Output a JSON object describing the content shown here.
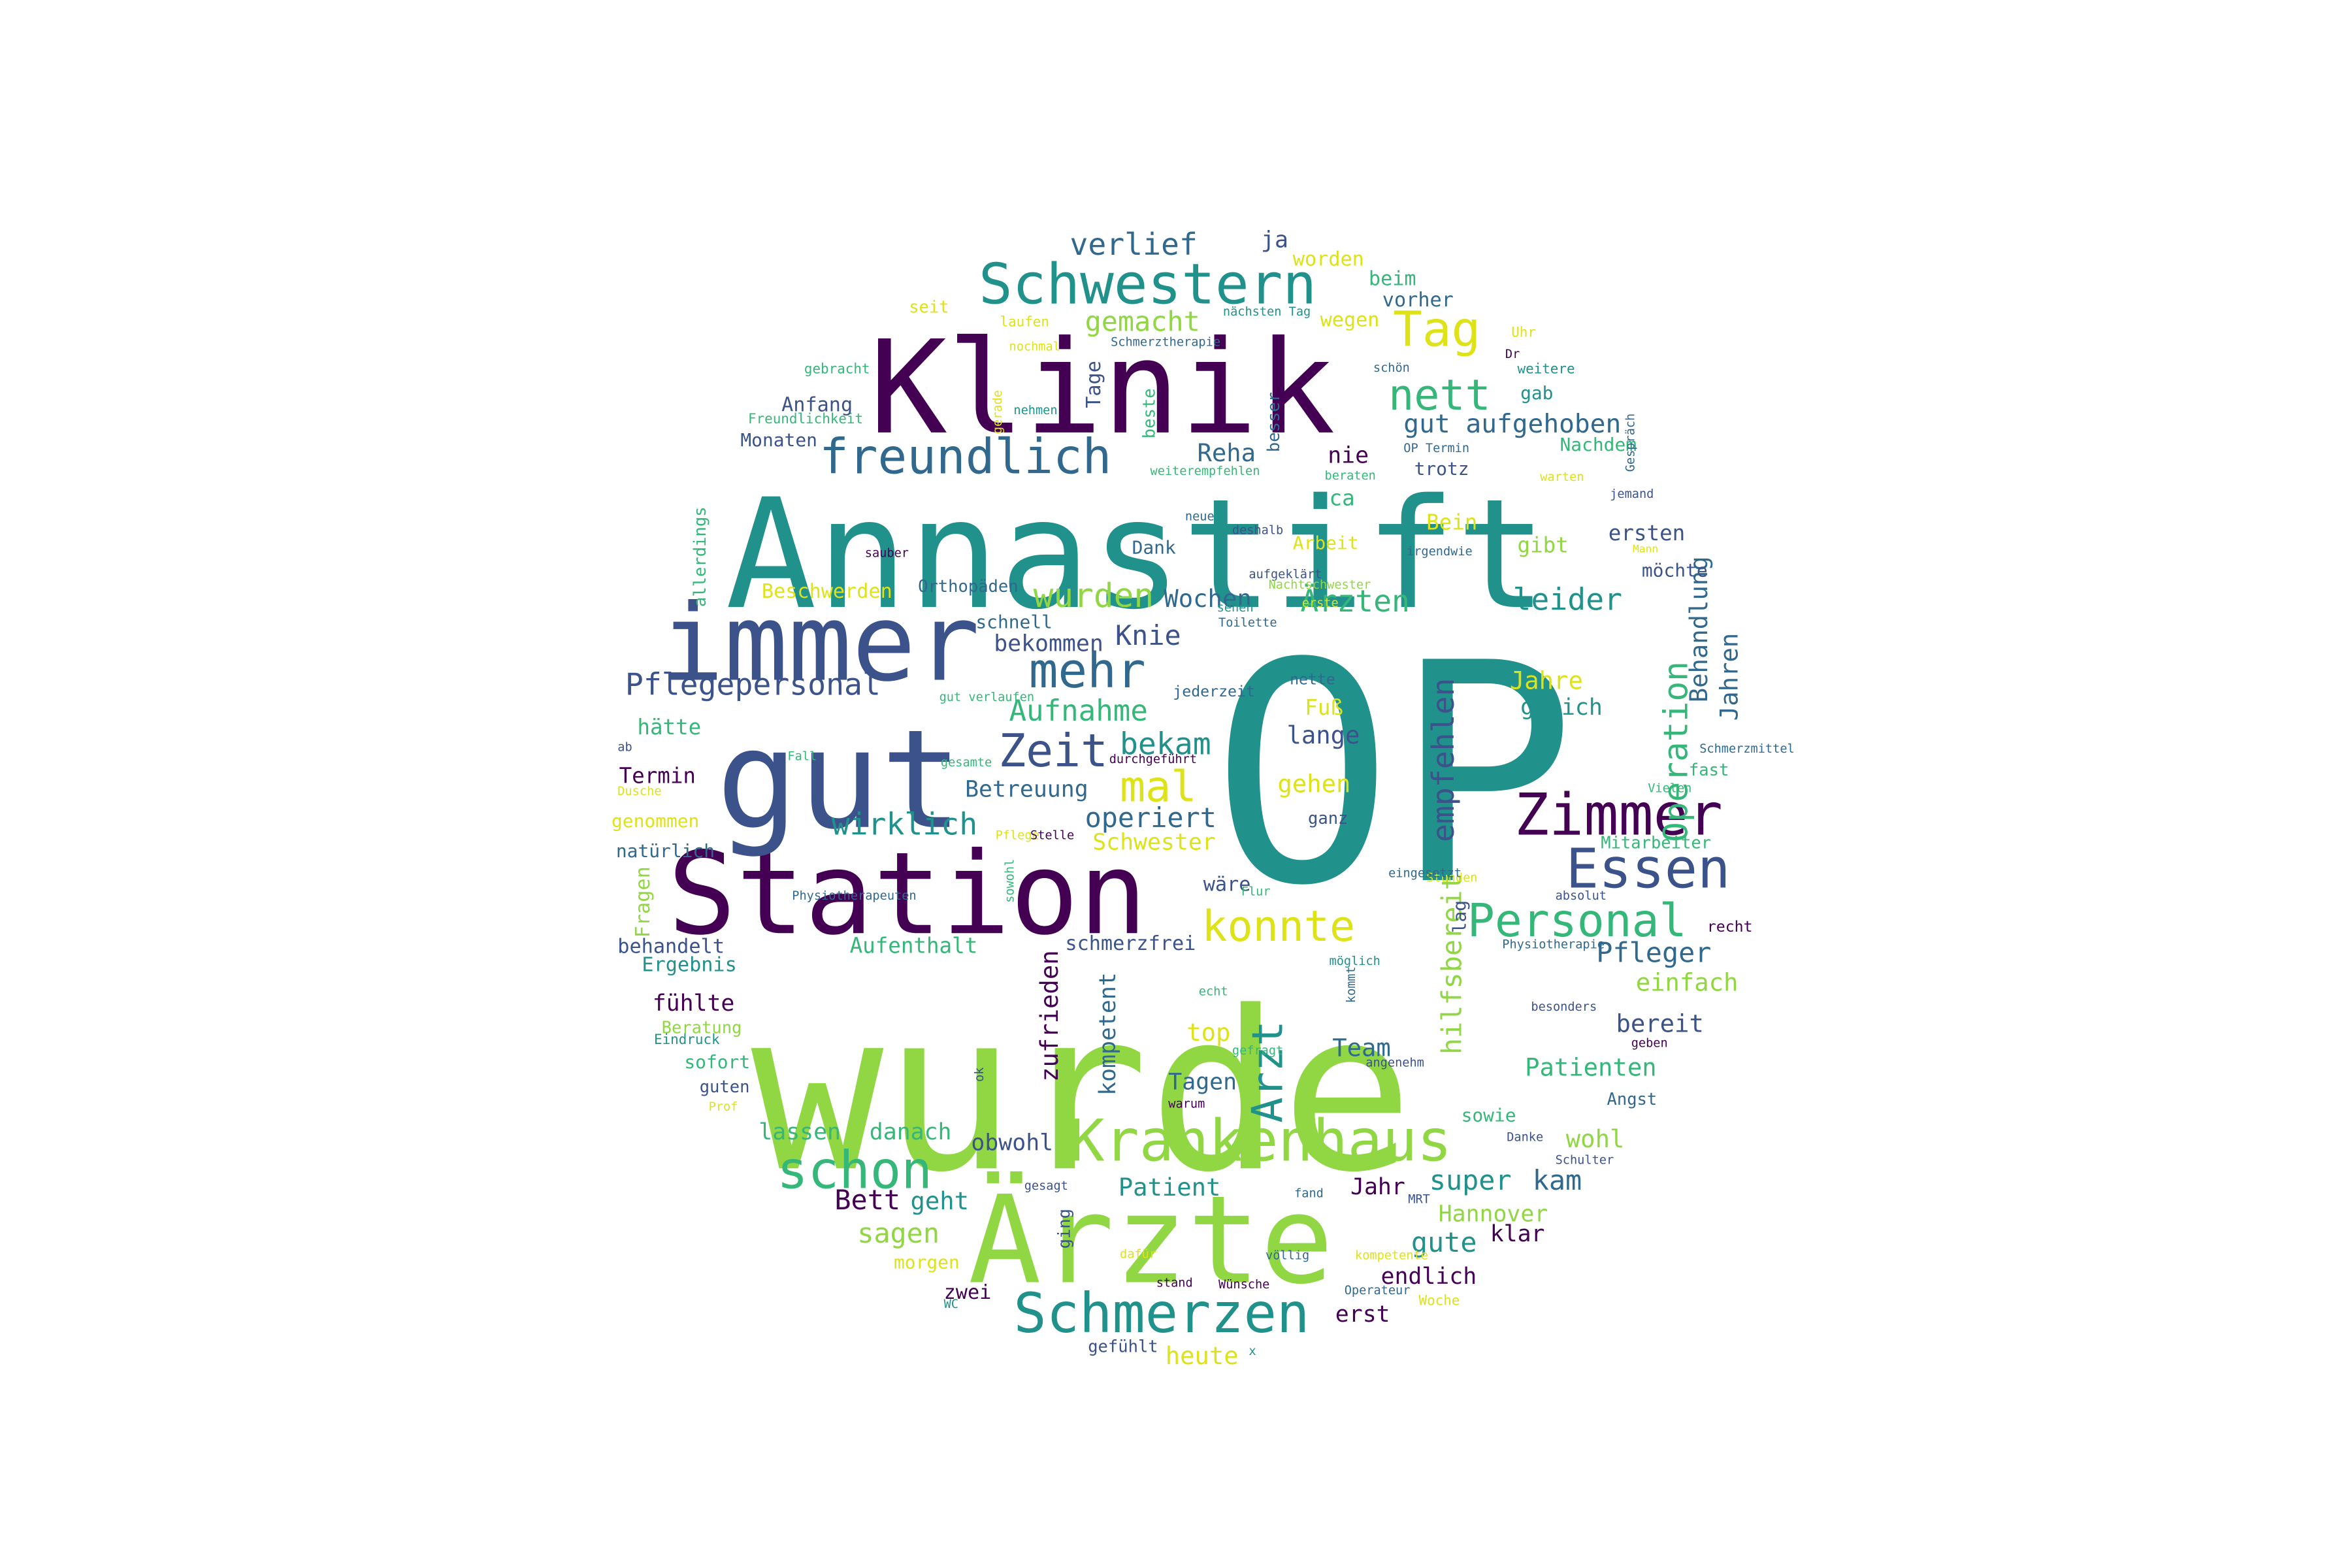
{
  "palette": {
    "dark_purple": "#440154",
    "indigo": "#3b528b",
    "blue": "#31688e",
    "teal": "#21918c",
    "green_teal": "#35b779",
    "lime": "#90d743",
    "yellow": "#dde318"
  },
  "words": [
    {
      "text": "OP",
      "color": "#21918c"
    },
    {
      "text": "wurde",
      "color": "#90d743"
    },
    {
      "text": "Annastift",
      "color": "#21918c"
    },
    {
      "text": "Klinik",
      "color": "#440154"
    },
    {
      "text": "Station",
      "color": "#440154"
    },
    {
      "text": "gut",
      "color": "#3b528b"
    },
    {
      "text": "immer",
      "color": "#3b528b"
    },
    {
      "text": "Ärzte",
      "color": "#90d743"
    },
    {
      "text": "Schwestern",
      "color": "#21918c"
    },
    {
      "text": "Krankenhaus",
      "color": "#90d743"
    },
    {
      "text": "Schmerzen",
      "color": "#21918c"
    },
    {
      "text": "Zimmer",
      "color": "#440154"
    },
    {
      "text": "Essen",
      "color": "#3b528b"
    },
    {
      "text": "freundlich",
      "color": "#31688e"
    },
    {
      "text": "mehr",
      "color": "#31688e"
    },
    {
      "text": "schon",
      "color": "#35b779"
    },
    {
      "text": "Personal",
      "color": "#35b779"
    },
    {
      "text": "Tag",
      "color": "#dde318"
    },
    {
      "text": "nett",
      "color": "#35b779"
    },
    {
      "text": "Zeit",
      "color": "#3b528b"
    },
    {
      "text": "konnte",
      "color": "#dde318"
    },
    {
      "text": "Arzt",
      "color": "#21918c"
    },
    {
      "text": "mal",
      "color": "#dde318"
    },
    {
      "text": "Operation",
      "color": "#35b779"
    },
    {
      "text": "Pflegepersonal",
      "color": "#3b528b"
    },
    {
      "text": "wirklich",
      "color": "#21918c"
    },
    {
      "text": "Aufnahme",
      "color": "#35b779"
    },
    {
      "text": "wurden",
      "color": "#90d743"
    },
    {
      "text": "Ärzten",
      "color": "#35b779"
    },
    {
      "text": "leider",
      "color": "#21918c"
    },
    {
      "text": "bekam",
      "color": "#21918c"
    },
    {
      "text": "operiert",
      "color": "#31688e"
    },
    {
      "text": "Pfleger",
      "color": "#31688e"
    },
    {
      "text": "empfehlen",
      "color": "#3b528b"
    },
    {
      "text": "verlief",
      "color": "#31688e"
    },
    {
      "text": "gemacht",
      "color": "#90d743"
    },
    {
      "text": "gut aufgehoben",
      "color": "#31688e"
    },
    {
      "text": "Knie",
      "color": "#3b528b"
    },
    {
      "text": "Reha",
      "color": "#31688e"
    },
    {
      "text": "Wochen",
      "color": "#31688e"
    },
    {
      "text": "Behandlung",
      "color": "#31688e"
    },
    {
      "text": "Jahren",
      "color": "#31688e"
    },
    {
      "text": "Betreuung",
      "color": "#31688e"
    },
    {
      "text": "bekommen",
      "color": "#3b528b"
    },
    {
      "text": "Jahre",
      "color": "#dde318"
    },
    {
      "text": "gleich",
      "color": "#21918c"
    },
    {
      "text": "super",
      "color": "#21918c"
    },
    {
      "text": "kam",
      "color": "#31688e"
    },
    {
      "text": "Team",
      "color": "#31688e"
    },
    {
      "text": "Patienten",
      "color": "#35b779"
    },
    {
      "text": "bereit",
      "color": "#3b528b"
    },
    {
      "text": "einfach",
      "color": "#90d743"
    },
    {
      "text": "hilfsbereit",
      "color": "#90d743"
    },
    {
      "text": "zufrieden",
      "color": "#440154"
    },
    {
      "text": "kompetent",
      "color": "#31688e"
    },
    {
      "text": "sagen",
      "color": "#90d743"
    },
    {
      "text": "Bett",
      "color": "#440154"
    },
    {
      "text": "geht",
      "color": "#21918c"
    },
    {
      "text": "danach",
      "color": "#35b779"
    },
    {
      "text": "lassen",
      "color": "#35b779"
    },
    {
      "text": "obwohl",
      "color": "#3b528b"
    },
    {
      "text": "Jahr",
      "color": "#440154"
    },
    {
      "text": "wohl",
      "color": "#90d743"
    },
    {
      "text": "Hannover",
      "color": "#90d743"
    },
    {
      "text": "gute",
      "color": "#21918c"
    },
    {
      "text": "klar",
      "color": "#440154"
    },
    {
      "text": "endlich",
      "color": "#440154"
    },
    {
      "text": "erst",
      "color": "#440154"
    },
    {
      "text": "heute",
      "color": "#dde318"
    },
    {
      "text": "zwei",
      "color": "#440154"
    },
    {
      "text": "Patient",
      "color": "#21918c"
    },
    {
      "text": "Tagen",
      "color": "#31688e"
    },
    {
      "text": "top",
      "color": "#dde318"
    },
    {
      "text": "Fuß",
      "color": "#dde318"
    },
    {
      "text": "lange",
      "color": "#3b528b"
    },
    {
      "text": "gehen",
      "color": "#dde318"
    },
    {
      "text": "Schwester",
      "color": "#dde318"
    },
    {
      "text": "ja",
      "color": "#3b528b"
    },
    {
      "text": "worden",
      "color": "#dde318"
    },
    {
      "text": "beim",
      "color": "#35b779"
    },
    {
      "text": "vorher",
      "color": "#31688e"
    },
    {
      "text": "wegen",
      "color": "#dde318"
    },
    {
      "text": "Tage",
      "color": "#3b528b"
    },
    {
      "text": "beste",
      "color": "#35b779"
    },
    {
      "text": "besser",
      "color": "#31688e"
    },
    {
      "text": "Anfang",
      "color": "#3b528b"
    },
    {
      "text": "Monaten",
      "color": "#3b528b"
    },
    {
      "text": "nie",
      "color": "#440154"
    },
    {
      "text": "ca",
      "color": "#35b779"
    },
    {
      "text": "trotz",
      "color": "#3b528b"
    },
    {
      "text": "gab",
      "color": "#21918c"
    },
    {
      "text": "Nachdem",
      "color": "#35b779"
    },
    {
      "text": "Bein",
      "color": "#dde318"
    },
    {
      "text": "Dank",
      "color": "#31688e"
    },
    {
      "text": "Arbeit",
      "color": "#dde318"
    },
    {
      "text": "gibt",
      "color": "#90d743"
    },
    {
      "text": "ersten",
      "color": "#3b528b"
    },
    {
      "text": "möchte",
      "color": "#3b528b"
    },
    {
      "text": "Beschwerden",
      "color": "#dde318"
    },
    {
      "text": "Orthopäden",
      "color": "#31688e"
    },
    {
      "text": "schnell",
      "color": "#31688e"
    },
    {
      "text": "allerdings",
      "color": "#35b779"
    },
    {
      "text": "hätte",
      "color": "#35b779"
    },
    {
      "text": "Termin",
      "color": "#440154"
    },
    {
      "text": "genommen",
      "color": "#dde318"
    },
    {
      "text": "natürlich",
      "color": "#31688e"
    },
    {
      "text": "Fragen",
      "color": "#90d743"
    },
    {
      "text": "behandelt",
      "color": "#3b528b"
    },
    {
      "text": "Aufenthalt",
      "color": "#35b779"
    },
    {
      "text": "schmerzfrei",
      "color": "#3b528b"
    },
    {
      "text": "Ergebnis",
      "color": "#21918c"
    },
    {
      "text": "fühlte",
      "color": "#440154"
    },
    {
      "text": "Beratung",
      "color": "#90d743"
    },
    {
      "text": "sofort",
      "color": "#35b779"
    },
    {
      "text": "guten",
      "color": "#3b528b"
    },
    {
      "text": "Eindruck",
      "color": "#21918c"
    },
    {
      "text": "wäre",
      "color": "#3b528b"
    },
    {
      "text": "morgen",
      "color": "#dde318"
    },
    {
      "text": "ging",
      "color": "#3b528b"
    },
    {
      "text": "sowie",
      "color": "#35b779"
    },
    {
      "text": "Angst",
      "color": "#31688e"
    },
    {
      "text": "ganz",
      "color": "#3b528b"
    },
    {
      "text": "Mitarbeiter",
      "color": "#35b779"
    },
    {
      "text": "fast",
      "color": "#35b779"
    },
    {
      "text": "recht",
      "color": "#440154"
    },
    {
      "text": "lag",
      "color": "#3b528b"
    },
    {
      "text": "seit",
      "color": "#dde318"
    },
    {
      "text": "laufen",
      "color": "#dde318"
    },
    {
      "text": "nächsten Tag",
      "color": "#21918c"
    },
    {
      "text": "Uhr",
      "color": "#dde318"
    },
    {
      "text": "gebracht",
      "color": "#35b779"
    },
    {
      "text": "nochmal",
      "color": "#dde318"
    },
    {
      "text": "Schmerztherapie",
      "color": "#31688e"
    },
    {
      "text": "schön",
      "color": "#31688e"
    },
    {
      "text": "Dr",
      "color": "#440154"
    },
    {
      "text": "weitere",
      "color": "#21918c"
    },
    {
      "text": "Freundlichkeit",
      "color": "#35b779"
    },
    {
      "text": "gerade",
      "color": "#dde318"
    },
    {
      "text": "nehmen",
      "color": "#21918c"
    },
    {
      "text": "OP Termin",
      "color": "#31688e"
    },
    {
      "text": "weiterempfehlen",
      "color": "#35b779"
    },
    {
      "text": "beraten",
      "color": "#35b779"
    },
    {
      "text": "warten",
      "color": "#dde318"
    },
    {
      "text": "jemand",
      "color": "#3b528b"
    },
    {
      "text": "Gespräch",
      "color": "#31688e"
    },
    {
      "text": "neue",
      "color": "#31688e"
    },
    {
      "text": "deshalb",
      "color": "#3b528b"
    },
    {
      "text": "irgendwie",
      "color": "#31688e"
    },
    {
      "text": "Mann",
      "color": "#dde318"
    },
    {
      "text": "sauber",
      "color": "#440154"
    },
    {
      "text": "aufgeklärt",
      "color": "#3b528b"
    },
    {
      "text": "Nachtschwester",
      "color": "#90d743"
    },
    {
      "text": "sehen",
      "color": "#21918c"
    },
    {
      "text": "erste",
      "color": "#dde318"
    },
    {
      "text": "Toilette",
      "color": "#31688e"
    },
    {
      "text": "nette",
      "color": "#31688e"
    },
    {
      "text": "jederzeit",
      "color": "#31688e"
    },
    {
      "text": "gut verlaufen",
      "color": "#35b779"
    },
    {
      "text": "ab",
      "color": "#3b528b"
    },
    {
      "text": "Fall",
      "color": "#35b779"
    },
    {
      "text": "gesamte",
      "color": "#35b779"
    },
    {
      "text": "durchgeführt",
      "color": "#440154"
    },
    {
      "text": "Dusche",
      "color": "#dde318"
    },
    {
      "text": "Schmerzmittel",
      "color": "#31688e"
    },
    {
      "text": "Vielen",
      "color": "#35b779"
    },
    {
      "text": "Pflege",
      "color": "#dde318"
    },
    {
      "text": "Stelle",
      "color": "#440154"
    },
    {
      "text": "sowohl",
      "color": "#35b779"
    },
    {
      "text": "Stunden",
      "color": "#dde318"
    },
    {
      "text": "eingesetzt",
      "color": "#31688e"
    },
    {
      "text": "Flur",
      "color": "#35b779"
    },
    {
      "text": "Physiotherapeuten",
      "color": "#31688e"
    },
    {
      "text": "absolut",
      "color": "#3b528b"
    },
    {
      "text": "möglich",
      "color": "#21918c"
    },
    {
      "text": "Physiotherapie",
      "color": "#31688e"
    },
    {
      "text": "echt",
      "color": "#35b779"
    },
    {
      "text": "kommt",
      "color": "#31688e"
    },
    {
      "text": "besonders",
      "color": "#3b528b"
    },
    {
      "text": "ok",
      "color": "#3b528b"
    },
    {
      "text": "gefragt",
      "color": "#35b779"
    },
    {
      "text": "angenehm",
      "color": "#3b528b"
    },
    {
      "text": "geben",
      "color": "#440154"
    },
    {
      "text": "Prof",
      "color": "#dde318"
    },
    {
      "text": "warum",
      "color": "#440154"
    },
    {
      "text": "Danke",
      "color": "#3b528b"
    },
    {
      "text": "Schulter",
      "color": "#3b528b"
    },
    {
      "text": "gesagt",
      "color": "#3b528b"
    },
    {
      "text": "fand",
      "color": "#31688e"
    },
    {
      "text": "MRT",
      "color": "#3b528b"
    },
    {
      "text": "dafür",
      "color": "#dde318"
    },
    {
      "text": "völlig",
      "color": "#31688e"
    },
    {
      "text": "kompetente",
      "color": "#dde318"
    },
    {
      "text": "stand",
      "color": "#440154"
    },
    {
      "text": "Wünsche",
      "color": "#440154"
    },
    {
      "text": "Operateur",
      "color": "#31688e"
    },
    {
      "text": "WC",
      "color": "#21918c"
    },
    {
      "text": "Woche",
      "color": "#dde318"
    },
    {
      "text": "gefühlt",
      "color": "#3b528b"
    },
    {
      "text": "x",
      "color": "#21918c"
    }
  ]
}
